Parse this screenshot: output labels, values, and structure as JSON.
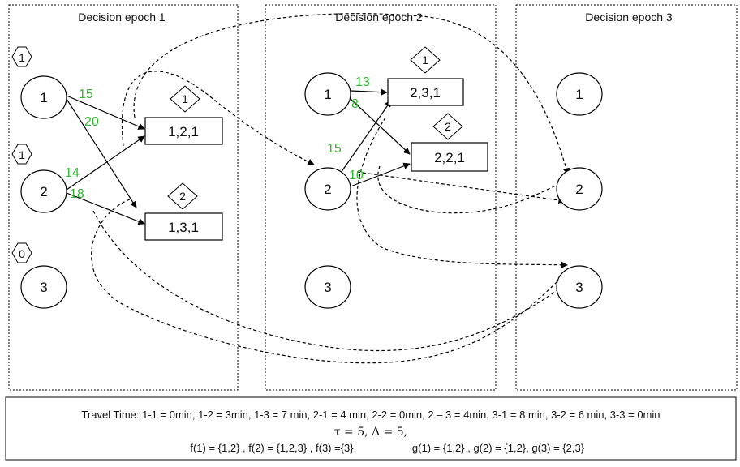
{
  "epochs": {
    "e1": {
      "title": "Decision epoch 1"
    },
    "e2": {
      "title": "Decision epoch 2"
    },
    "e3": {
      "title": "Decision epoch 3"
    }
  },
  "nodes": {
    "e1": {
      "n1": "1",
      "n2": "2",
      "n3": "3"
    },
    "e2": {
      "n1": "1",
      "n2": "2",
      "n3": "3"
    },
    "e3": {
      "n1": "1",
      "n2": "2",
      "n3": "3"
    }
  },
  "counts": {
    "n1": "1",
    "n2": "1",
    "n3": "0"
  },
  "routes": {
    "e1": {
      "r1": {
        "label": "1,2,1",
        "badge": "1"
      },
      "r2": {
        "label": "1,3,1",
        "badge": "2"
      }
    },
    "e2": {
      "r1": {
        "label": "2,3,1",
        "badge": "1"
      },
      "r2": {
        "label": "2,2,1",
        "badge": "2"
      }
    }
  },
  "travel_times": {
    "e1": {
      "a": "15",
      "b": "20",
      "c": "14",
      "d": "18"
    },
    "e2": {
      "a": "13",
      "b": "8",
      "c": "15",
      "d": "10"
    }
  },
  "footer": {
    "line1": "Travel Time: 1-1 = 0min, 1-2 = 3min, 1-3 = 7 min, 2-1 = 4 min, 2-2 = 0min,  2 – 3 = 4min, 3-1 = 8 min, 3-2 = 6 min, 3-3 = 0min",
    "line2": "τ = 5, Δ = 5,",
    "f_sets": "f(1) = {1,2} , f(2) = {1,2,3} , f(3) ={3}",
    "g_sets": "g(1) = {1,2} , g(2) = {1,2}, g(3) = {2,3}"
  },
  "colors": {
    "time_label": "#2eb82e",
    "stroke": "#000000",
    "background": "#ffffff"
  }
}
